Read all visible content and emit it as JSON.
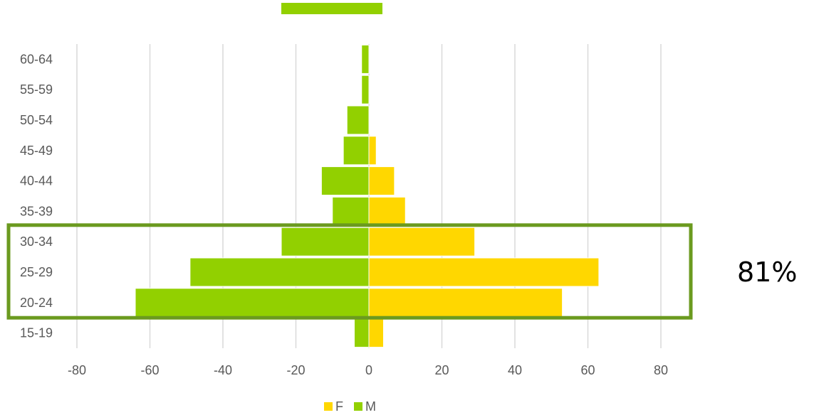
{
  "chart_data": {
    "type": "bar",
    "orientation": "horizontal",
    "stacked": "diverging",
    "categories": [
      "15-19",
      "20-24",
      "25-29",
      "30-34",
      "35-39",
      "40-44",
      "45-49",
      "50-54",
      "55-59",
      "60-64"
    ],
    "series": [
      {
        "name": "F",
        "color": "#FFD700",
        "values": [
          4,
          53,
          63,
          29,
          10,
          7,
          2,
          0,
          0,
          0
        ]
      },
      {
        "name": "M",
        "color": "#92D000",
        "values": [
          -4,
          -64,
          -49,
          -24,
          -10,
          -13,
          -7,
          -6,
          -2,
          -2
        ]
      }
    ],
    "xlim": [
      -80,
      80
    ],
    "xticks": [
      -80,
      -60,
      -40,
      -20,
      0,
      20,
      40,
      60,
      80
    ],
    "grid": "vertical",
    "legend": "bottom",
    "highlight": {
      "categories": [
        "20-24",
        "25-29",
        "30-34"
      ],
      "label": "81%",
      "border_color": "#6B9A1F"
    }
  }
}
